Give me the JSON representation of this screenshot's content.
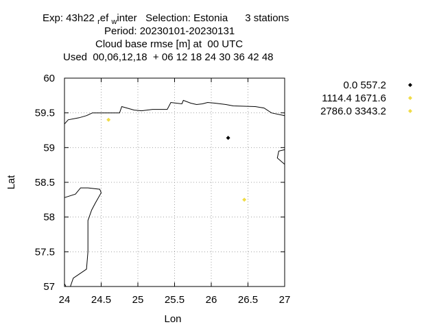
{
  "header": {
    "line1": {
      "exp_prefix": "Exp: 43h22",
      "sub_r": "r",
      "ef": "ef",
      "sub_w": "w",
      "inter": "inter",
      "selection": "Selection: Estonia",
      "stations": "3 stations"
    },
    "line2": "Period: 20230101-20230131",
    "line3": "Cloud base rmse [m] at  00 UTC",
    "line4": "Used  00,06,12,18  + 06 12 18 24 30 36 42 48"
  },
  "chart_data": {
    "type": "scatter",
    "xlabel": "Lon",
    "ylabel": "Lat",
    "xlim": [
      24,
      27
    ],
    "ylim": [
      57,
      60
    ],
    "xticks": [
      "24",
      "24.5",
      "25",
      "25.5",
      "26",
      "26.5",
      "27"
    ],
    "yticks": [
      "57",
      "57.5",
      "58",
      "58.5",
      "59",
      "59.5",
      "60"
    ],
    "grid": true,
    "legend_position": "right",
    "series": [
      {
        "name": "0.0 557.2",
        "color": "#000000",
        "points": [
          [
            26.23,
            59.14
          ]
        ]
      },
      {
        "name": "1114.4 1671.6",
        "color": "#f0dc46",
        "points": [
          [
            24.6,
            59.4
          ],
          [
            26.45,
            58.25
          ]
        ]
      },
      {
        "name": "2786.0 3343.2",
        "color": "#f0dc46",
        "points": []
      }
    ],
    "coastline": [
      [
        [
          24.0,
          59.34
        ],
        [
          24.05,
          59.4
        ],
        [
          24.2,
          59.43
        ],
        [
          24.3,
          59.46
        ],
        [
          24.38,
          59.5
        ],
        [
          24.55,
          59.5
        ],
        [
          24.75,
          59.5
        ],
        [
          24.78,
          59.59
        ],
        [
          24.95,
          59.54
        ],
        [
          25.05,
          59.53
        ],
        [
          25.2,
          59.55
        ],
        [
          25.4,
          59.55
        ],
        [
          25.45,
          59.65
        ],
        [
          25.6,
          59.63
        ],
        [
          25.62,
          59.68
        ],
        [
          25.72,
          59.64
        ],
        [
          25.8,
          59.62
        ],
        [
          25.88,
          59.63
        ],
        [
          25.95,
          59.65
        ],
        [
          26.05,
          59.64
        ],
        [
          26.2,
          59.62
        ],
        [
          26.3,
          59.6
        ],
        [
          26.6,
          59.59
        ],
        [
          26.72,
          59.57
        ],
        [
          26.82,
          59.5
        ],
        [
          27.0,
          59.46
        ]
      ],
      [
        [
          27.0,
          58.97
        ],
        [
          26.92,
          58.95
        ],
        [
          26.9,
          58.85
        ],
        [
          27.0,
          58.76
        ]
      ],
      [
        [
          24.0,
          58.28
        ],
        [
          24.15,
          58.33
        ],
        [
          24.22,
          58.42
        ],
        [
          24.32,
          58.42
        ],
        [
          24.48,
          58.4
        ],
        [
          24.5,
          58.35
        ],
        [
          24.42,
          58.2
        ],
        [
          24.37,
          58.1
        ],
        [
          24.32,
          57.95
        ],
        [
          24.32,
          57.5
        ],
        [
          24.3,
          57.25
        ],
        [
          24.12,
          57.12
        ],
        [
          24.08,
          57.0
        ]
      ],
      [
        [
          24.0,
          57.04
        ],
        [
          24.02,
          57.0
        ]
      ]
    ]
  }
}
